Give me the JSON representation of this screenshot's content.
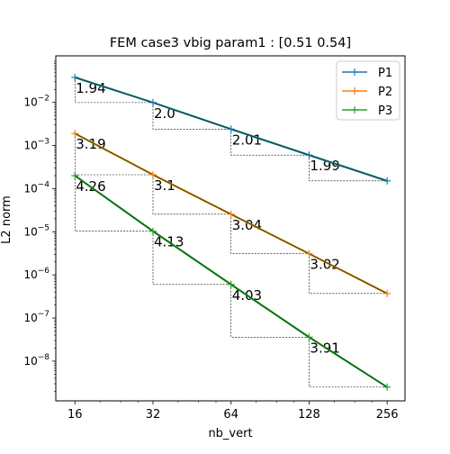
{
  "chart_data": {
    "type": "line",
    "title": "FEM case3 vbig param1 : [0.51 0.54]",
    "xlabel": "nb_vert",
    "ylabel": "L2 norm",
    "xscale": "log2",
    "yscale": "log10",
    "xlim": [
      13.5,
      300
    ],
    "ylim": [
      1.2e-09,
      0.12
    ],
    "x_ticks": [
      16,
      32,
      64,
      128,
      256
    ],
    "x_tick_labels": [
      "16",
      "32",
      "64",
      "128",
      "256"
    ],
    "y_ticks": [
      1e-08,
      1e-07,
      1e-06,
      1e-05,
      0.0001,
      0.001,
      0.01
    ],
    "y_tick_labels": [
      {
        "base": "10",
        "exp": "−8"
      },
      {
        "base": "10",
        "exp": "−7"
      },
      {
        "base": "10",
        "exp": "−6"
      },
      {
        "base": "10",
        "exp": "−5"
      },
      {
        "base": "10",
        "exp": "−4"
      },
      {
        "base": "10",
        "exp": "−3"
      },
      {
        "base": "10",
        "exp": "−2"
      }
    ],
    "x": [
      16,
      32,
      64,
      128,
      256
    ],
    "series": [
      {
        "name": "P1",
        "color": "#1f77b4",
        "values": [
          0.038,
          0.0099,
          0.0024,
          0.0006,
          0.000151
        ]
      },
      {
        "name": "P2",
        "color": "#ff7f0e",
        "values": [
          0.0019,
          0.00021,
          2.55e-05,
          3.1e-06,
          3.7e-07
        ]
      },
      {
        "name": "P3",
        "color": "#2ca02c",
        "values": [
          0.0002,
          1.03e-05,
          6e-07,
          3.6e-08,
          2.5e-09
        ]
      }
    ],
    "overlay_line_color": "#0b4f0b",
    "slope_labels": [
      [
        "1.94",
        "2.0",
        "2.01",
        "1.99"
      ],
      [
        "3.19",
        "3.1",
        "3.04",
        "3.02"
      ],
      [
        "4.26",
        "4.13",
        "4.03",
        "3.91"
      ]
    ],
    "legend": {
      "placement": "top-right"
    },
    "grid": false
  }
}
